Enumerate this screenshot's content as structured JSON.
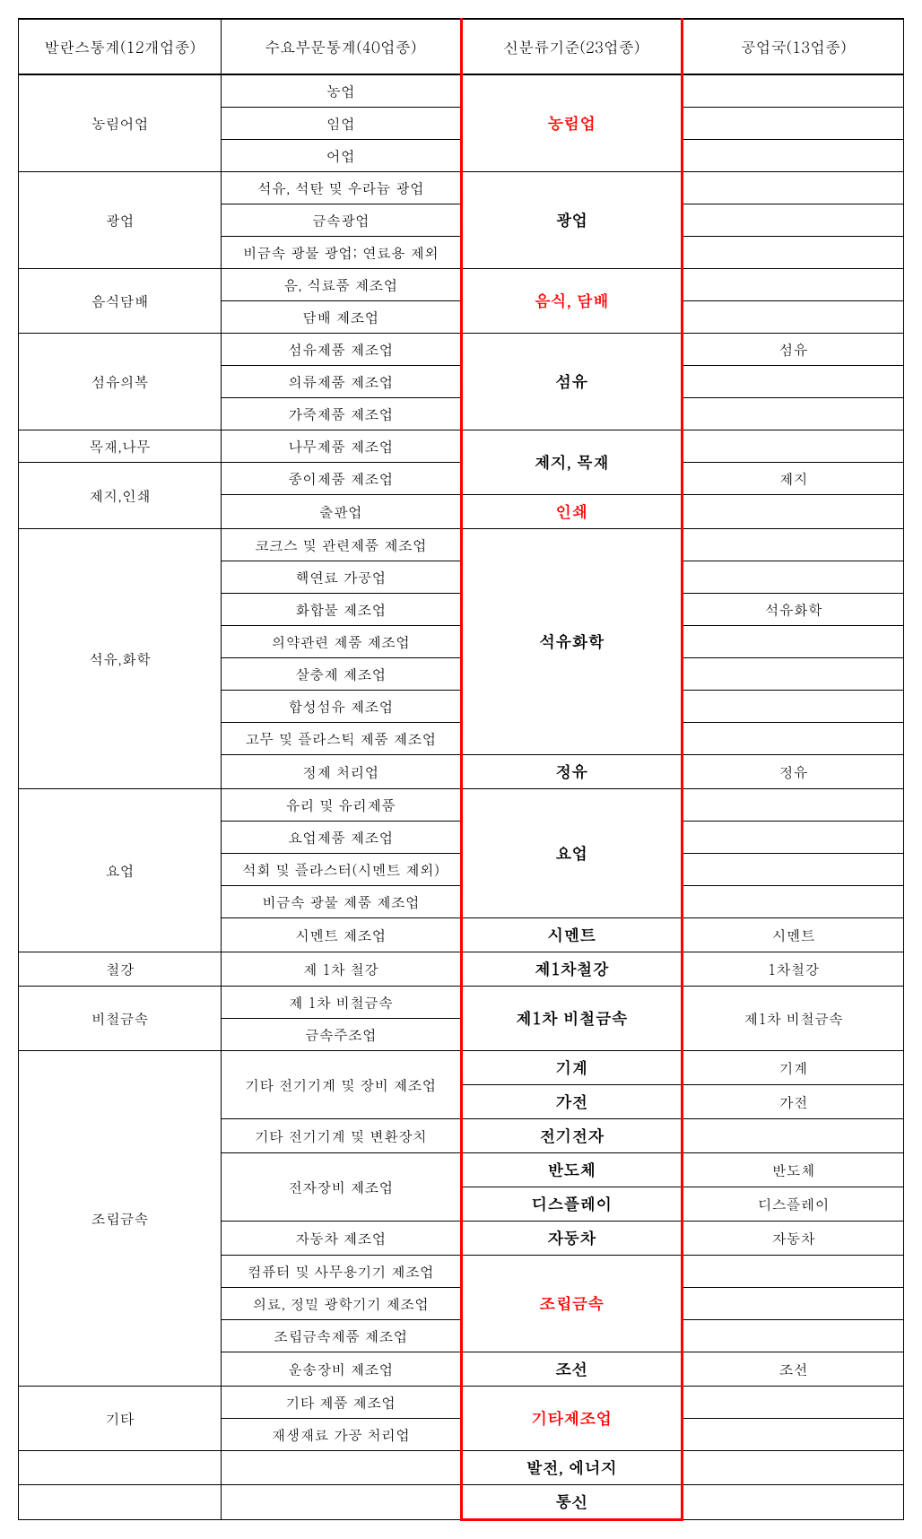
{
  "headers": {
    "c1": "발란스통계(12개업종)",
    "c2": "수요부문통계(40업종)",
    "c3": "신분류기준(23업종)",
    "c4": "공업국(13업종)"
  },
  "rows": [
    {
      "c1": "농림어업",
      "c1span": 3,
      "c2": "농업",
      "c3": "농림업",
      "c3span": 3,
      "c3red": true,
      "c4": ""
    },
    {
      "c2": "임업",
      "c4": ""
    },
    {
      "c2": "어업",
      "c4": ""
    },
    {
      "c1": "광업",
      "c1span": 3,
      "c2": "석유, 석탄 및 우라늄 광업",
      "c3": "광업",
      "c3span": 3,
      "c4": ""
    },
    {
      "c2": "금속광업",
      "c4": ""
    },
    {
      "c2": "비금속 광물 광업; 연료용 제외",
      "c4": ""
    },
    {
      "c1": "음식담배",
      "c1span": 2,
      "c2": "음, 식료품 제조업",
      "c3": "음식, 담배",
      "c3span": 2,
      "c3red": true,
      "c4": ""
    },
    {
      "c2": "담배 제조업",
      "c4": ""
    },
    {
      "c1": "섬유의복",
      "c1span": 3,
      "c2": "섬유제품 제조업",
      "c3": "섬유",
      "c3span": 3,
      "c4": "섬유"
    },
    {
      "c2": "의류제품 제조업",
      "c4": ""
    },
    {
      "c2": "가죽제품 제조업",
      "c4": ""
    },
    {
      "c1": "목재,나무",
      "c2": "나무제품 제조업",
      "c3": "제지, 목재",
      "c3span": 2,
      "c4": ""
    },
    {
      "c1": "제지,인쇄",
      "c1span": 2,
      "c2": "종이제품 제조업",
      "c4": "제지"
    },
    {
      "c2": "출판업",
      "c3": "인쇄",
      "c3red": true,
      "c4": ""
    },
    {
      "c1": "석유,화학",
      "c1span": 8,
      "c2": "코크스 및 관련제품 제조업",
      "c3": "석유화학",
      "c3span": 7,
      "c4": ""
    },
    {
      "c2": "핵연료 가공업",
      "c4": ""
    },
    {
      "c2": "화합물 제조업",
      "c4": "석유화학"
    },
    {
      "c2": "의약관련 제품 제조업",
      "c4": ""
    },
    {
      "c2": "살충제 제조업",
      "c4": ""
    },
    {
      "c2": "합성섬유 제조업",
      "c4": ""
    },
    {
      "c2": "고무 및 플라스틱 제품 제조업",
      "c4": ""
    },
    {
      "c2": "정제 처리업",
      "c3": "정유",
      "c4": "정유"
    },
    {
      "c1": "요업",
      "c1span": 5,
      "c2": "유리 및 유리제품",
      "c3": "요업",
      "c3span": 4,
      "c4": ""
    },
    {
      "c2": "요업제품 제조업",
      "c4": ""
    },
    {
      "c2": "석회 및 플라스터(시멘트 제외)",
      "c4": ""
    },
    {
      "c2": "비금속 광물 제품 제조업",
      "c4": ""
    },
    {
      "c2": "시멘트 제조업",
      "c3": "시멘트",
      "c4": "시멘트"
    },
    {
      "c1": "철강",
      "c2": "제 1차 철강",
      "c3": "제1차철강",
      "c4": "1차철강"
    },
    {
      "c1": "비철금속",
      "c1span": 2,
      "c2": "제 1차 비철금속",
      "c3": "제1차 비철금속",
      "c3span": 2,
      "c4": "제1차 비철금속",
      "c4span": 2
    },
    {
      "c2": "금속주조업"
    },
    {
      "c1": "조립금속",
      "c1span": 10,
      "c2": "기타 전기기계 및 장비 제조업",
      "c2span": 2,
      "c3": "기계",
      "c4": "기계"
    },
    {
      "c3": "가전",
      "c4": "가전"
    },
    {
      "c2": "기타 전기기계 및 변환장치",
      "c3": "전기전자",
      "c4": ""
    },
    {
      "c2": "전자장비 제조업",
      "c2span": 2,
      "c3": "반도체",
      "c4": "반도체"
    },
    {
      "c3": "디스플레이",
      "c4": "디스플레이"
    },
    {
      "c2": "자동차 제조업",
      "c3": "자동차",
      "c4": "자동차"
    },
    {
      "c2": "컴퓨터 및 사무용기기 제조업",
      "c3": "조립금속",
      "c3span": 3,
      "c3red": true,
      "c4": ""
    },
    {
      "c2": "의료, 정밀 광학기기 제조업",
      "c4": ""
    },
    {
      "c2": "조립금속제품 제조업",
      "c4": ""
    },
    {
      "c2": "운송장비 제조업",
      "c3": "조선",
      "c4": "조선"
    },
    {
      "c1": "기타",
      "c1span": 2,
      "c2": "기타 제품 제조업",
      "c3": "기타제조업",
      "c3span": 2,
      "c3red": true,
      "c4": ""
    },
    {
      "c2": "재생재료 가공 처리업",
      "c4": ""
    },
    {
      "c1": "",
      "c2": "",
      "c3": "발전, 에너지",
      "c4": ""
    },
    {
      "c1": "",
      "c2": "",
      "c3": "통신",
      "c3last": true,
      "c4": ""
    }
  ]
}
